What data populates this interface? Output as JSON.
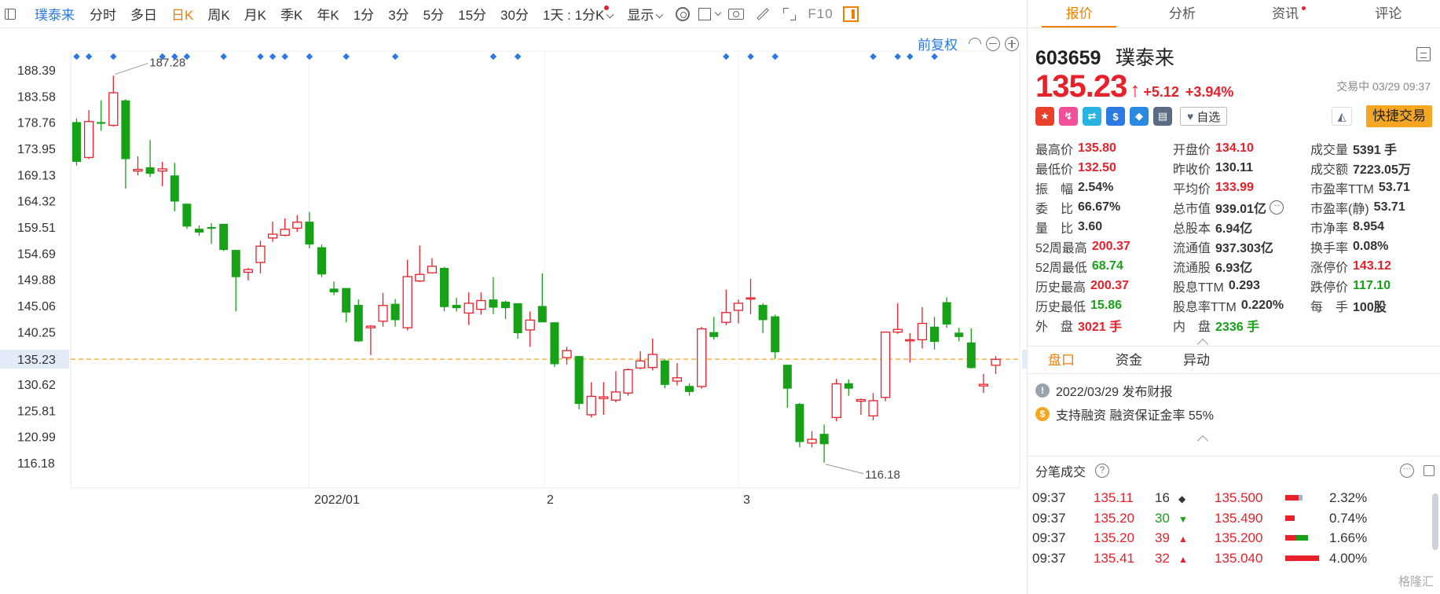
{
  "toolbar": {
    "stock_name": "璞泰来",
    "periods": [
      "分时",
      "多日",
      "日K",
      "周K",
      "月K",
      "季K",
      "年K",
      "1分",
      "3分",
      "5分",
      "15分",
      "30分"
    ],
    "active_period": "日K",
    "interval_dropdown": "1天 : 1分K",
    "display_dropdown": "显示",
    "f10_label": "F10",
    "icons": [
      "sidebar-toggle-icon",
      "gear-icon",
      "square-icon",
      "camera-icon",
      "pen-icon",
      "fullscreen-icon",
      "panel-icon"
    ]
  },
  "chart": {
    "adjust_label": "前复权",
    "y_ticks": [
      "188.39",
      "183.58",
      "178.76",
      "173.95",
      "169.13",
      "164.32",
      "159.51",
      "154.69",
      "149.88",
      "145.06",
      "140.25",
      "135.23",
      "130.62",
      "125.81",
      "120.99",
      "116.18"
    ],
    "current_price_label": "135.23",
    "high_marker": "187.28",
    "low_marker": "116.18",
    "x_labels": [
      "2022/01",
      "2",
      "3"
    ],
    "colors": {
      "up": "#e8202a",
      "down": "#16a116",
      "price_line": "#f5a623",
      "marker": "#2a7ae2"
    }
  },
  "chart_data": {
    "type": "candlestick",
    "title": "",
    "ylim": [
      113,
      191
    ],
    "x_labels": [
      "2022/01",
      "2",
      "3"
    ],
    "y_ticks": [
      188.39,
      183.58,
      178.76,
      173.95,
      169.13,
      164.32,
      159.51,
      154.69,
      149.88,
      145.06,
      140.25,
      135.23,
      130.62,
      125.81,
      120.99,
      116.18
    ],
    "current_price": 135.23,
    "high_mark": 187.28,
    "low_mark": 116.18,
    "candles": [
      {
        "o": 178.8,
        "c": 171.5,
        "h": 179.5,
        "l": 170.8
      },
      {
        "o": 172.3,
        "c": 178.9,
        "h": 181.0,
        "l": 172.0
      },
      {
        "o": 178.8,
        "c": 178.5,
        "h": 182.8,
        "l": 177.2
      },
      {
        "o": 178.2,
        "c": 184.2,
        "h": 187.3,
        "l": 178.0
      },
      {
        "o": 182.8,
        "c": 172.0,
        "h": 183.0,
        "l": 166.6
      },
      {
        "o": 169.8,
        "c": 170.1,
        "h": 172.5,
        "l": 169.0
      },
      {
        "o": 170.5,
        "c": 169.3,
        "h": 175.5,
        "l": 168.7
      },
      {
        "o": 169.8,
        "c": 170.2,
        "h": 171.5,
        "l": 167.0
      },
      {
        "o": 169.0,
        "c": 164.2,
        "h": 171.3,
        "l": 162.4
      },
      {
        "o": 163.8,
        "c": 159.6,
        "h": 163.8,
        "l": 159.2
      },
      {
        "o": 159.2,
        "c": 158.5,
        "h": 159.8,
        "l": 157.9
      },
      {
        "o": 159.5,
        "c": 159.2,
        "h": 160.2,
        "l": 156.4
      },
      {
        "o": 160.1,
        "c": 155.3,
        "h": 160.1,
        "l": 155.1
      },
      {
        "o": 155.3,
        "c": 150.3,
        "h": 155.3,
        "l": 144.0
      },
      {
        "o": 151.2,
        "c": 151.7,
        "h": 152.0,
        "l": 149.7
      },
      {
        "o": 153.0,
        "c": 156.0,
        "h": 157.0,
        "l": 151.0
      },
      {
        "o": 157.5,
        "c": 158.2,
        "h": 160.5,
        "l": 156.8
      },
      {
        "o": 158.0,
        "c": 159.1,
        "h": 161.1,
        "l": 157.8
      },
      {
        "o": 159.3,
        "c": 160.4,
        "h": 161.7,
        "l": 158.6
      },
      {
        "o": 160.5,
        "c": 156.3,
        "h": 162.3,
        "l": 155.6
      },
      {
        "o": 155.8,
        "c": 150.8,
        "h": 156.3,
        "l": 150.3
      },
      {
        "o": 148.2,
        "c": 147.5,
        "h": 149.5,
        "l": 147.0
      },
      {
        "o": 148.3,
        "c": 143.8,
        "h": 148.3,
        "l": 142.0
      },
      {
        "o": 145.2,
        "c": 138.5,
        "h": 146.2,
        "l": 138.4
      },
      {
        "o": 141.0,
        "c": 141.3,
        "h": 141.5,
        "l": 136.0
      },
      {
        "o": 142.2,
        "c": 145.1,
        "h": 147.4,
        "l": 141.2
      },
      {
        "o": 145.4,
        "c": 142.4,
        "h": 146.3,
        "l": 141.2
      },
      {
        "o": 141.0,
        "c": 150.4,
        "h": 153.5,
        "l": 140.5
      },
      {
        "o": 149.6,
        "c": 150.8,
        "h": 156.1,
        "l": 149.4
      },
      {
        "o": 151.1,
        "c": 152.3,
        "h": 153.8,
        "l": 151.0
      },
      {
        "o": 152.0,
        "c": 144.8,
        "h": 152.2,
        "l": 144.0
      },
      {
        "o": 145.2,
        "c": 144.6,
        "h": 146.5,
        "l": 144.0
      },
      {
        "o": 143.7,
        "c": 145.5,
        "h": 147.5,
        "l": 141.5
      },
      {
        "o": 144.4,
        "c": 146.0,
        "h": 147.5,
        "l": 143.4
      },
      {
        "o": 146.2,
        "c": 144.7,
        "h": 150.3,
        "l": 143.5
      },
      {
        "o": 145.8,
        "c": 144.6,
        "h": 146.0,
        "l": 142.6
      },
      {
        "o": 145.5,
        "c": 140.0,
        "h": 145.5,
        "l": 139.0
      },
      {
        "o": 140.6,
        "c": 142.4,
        "h": 144.0,
        "l": 137.5
      },
      {
        "o": 145.0,
        "c": 142.0,
        "h": 151.0,
        "l": 142.0
      },
      {
        "o": 142.0,
        "c": 134.3,
        "h": 142.0,
        "l": 133.8
      },
      {
        "o": 135.5,
        "c": 136.8,
        "h": 137.5,
        "l": 134.2
      },
      {
        "o": 135.8,
        "c": 127.0,
        "h": 135.8,
        "l": 126.0
      },
      {
        "o": 125.0,
        "c": 128.4,
        "h": 131.0,
        "l": 124.5
      },
      {
        "o": 128.0,
        "c": 128.3,
        "h": 131.0,
        "l": 125.0
      },
      {
        "o": 127.7,
        "c": 129.2,
        "h": 133.0,
        "l": 127.3
      },
      {
        "o": 129.0,
        "c": 133.3,
        "h": 133.5,
        "l": 128.5
      },
      {
        "o": 133.6,
        "c": 134.9,
        "h": 136.7,
        "l": 133.4
      },
      {
        "o": 133.7,
        "c": 136.1,
        "h": 139.0,
        "l": 133.2
      },
      {
        "o": 135.0,
        "c": 130.5,
        "h": 135.2,
        "l": 129.9
      },
      {
        "o": 131.2,
        "c": 131.8,
        "h": 134.5,
        "l": 130.4
      },
      {
        "o": 130.3,
        "c": 129.2,
        "h": 130.8,
        "l": 128.5
      },
      {
        "o": 130.2,
        "c": 140.8,
        "h": 141.2,
        "l": 129.8
      },
      {
        "o": 140.2,
        "c": 139.3,
        "h": 143.0,
        "l": 138.8
      },
      {
        "o": 142.0,
        "c": 143.8,
        "h": 148.0,
        "l": 141.5
      },
      {
        "o": 144.2,
        "c": 145.5,
        "h": 146.2,
        "l": 141.8
      },
      {
        "o": 146.4,
        "c": 146.5,
        "h": 150.0,
        "l": 143.5
      },
      {
        "o": 145.2,
        "c": 142.4,
        "h": 145.5,
        "l": 140.0
      },
      {
        "o": 143.1,
        "c": 136.5,
        "h": 143.4,
        "l": 135.3
      },
      {
        "o": 134.2,
        "c": 129.8,
        "h": 134.2,
        "l": 126.3
      },
      {
        "o": 127.0,
        "c": 120.0,
        "h": 127.2,
        "l": 119.0
      },
      {
        "o": 119.8,
        "c": 120.5,
        "h": 122.0,
        "l": 119.0
      },
      {
        "o": 121.5,
        "c": 119.6,
        "h": 123.2,
        "l": 116.2
      },
      {
        "o": 124.5,
        "c": 130.7,
        "h": 131.6,
        "l": 123.8
      },
      {
        "o": 130.8,
        "c": 129.8,
        "h": 131.5,
        "l": 128.5
      },
      {
        "o": 127.5,
        "c": 127.8,
        "h": 128.0,
        "l": 125.0
      },
      {
        "o": 124.8,
        "c": 127.6,
        "h": 129.0,
        "l": 124.0
      },
      {
        "o": 128.2,
        "c": 140.2,
        "h": 140.3,
        "l": 127.5
      },
      {
        "o": 140.2,
        "c": 140.7,
        "h": 145.5,
        "l": 139.9
      },
      {
        "o": 138.8,
        "c": 138.8,
        "h": 140.0,
        "l": 134.6
      },
      {
        "o": 138.8,
        "c": 141.8,
        "h": 144.8,
        "l": 137.2
      },
      {
        "o": 141.2,
        "c": 138.4,
        "h": 143.0,
        "l": 137.0
      },
      {
        "o": 145.7,
        "c": 141.6,
        "h": 146.6,
        "l": 141.0
      },
      {
        "o": 140.1,
        "c": 139.3,
        "h": 141.0,
        "l": 138.5
      },
      {
        "o": 138.3,
        "c": 133.6,
        "h": 140.9,
        "l": 133.5
      },
      {
        "o": 130.3,
        "c": 130.6,
        "h": 132.5,
        "l": 129.0
      },
      {
        "o": 134.1,
        "c": 135.2,
        "h": 135.8,
        "l": 132.5
      }
    ],
    "top_markers_candle_index": [
      0,
      1,
      3,
      7,
      8,
      9,
      12,
      15,
      16,
      17,
      19,
      22,
      26,
      34,
      36,
      53,
      55,
      57,
      65,
      67,
      68,
      70
    ]
  },
  "panel": {
    "tabs": [
      "报价",
      "分析",
      "资讯",
      "评论"
    ],
    "active_tab": "报价",
    "code": "603659",
    "name": "璞泰来",
    "price": "135.23",
    "change": "+5.12",
    "change_pct": "+3.94%",
    "trade_status": "交易中 03/29 09:37",
    "badges": [
      {
        "name": "china-flag-icon",
        "glyph": "★",
        "color": "#e8402a"
      },
      {
        "name": "margin-icon",
        "glyph": "↯",
        "color": "#f0509a"
      },
      {
        "name": "shuffle-icon",
        "glyph": "⇄",
        "color": "#2ab3e0"
      },
      {
        "name": "dollar-icon",
        "glyph": "$",
        "color": "#2a7ae2"
      },
      {
        "name": "tag-icon",
        "glyph": "◆",
        "color": "#2a8ae2"
      },
      {
        "name": "doc-icon",
        "glyph": "▤",
        "color": "#5a6b82"
      }
    ],
    "favorite_label": "自选",
    "quick_trade_label": "快捷交易",
    "stats": [
      {
        "label": "最高价",
        "value": "135.80",
        "color": "red"
      },
      {
        "label": "开盘价",
        "value": "134.10",
        "color": "red"
      },
      {
        "label": "成交量",
        "value": "5391 手",
        "color": ""
      },
      {
        "label": "最低价",
        "value": "132.50",
        "color": "red"
      },
      {
        "label": "昨收价",
        "value": "130.11",
        "color": ""
      },
      {
        "label": "成交额",
        "value": "7223.05万",
        "color": ""
      },
      {
        "label": "振　幅",
        "value": "2.54%",
        "color": ""
      },
      {
        "label": "平均价",
        "value": "133.99",
        "color": "red"
      },
      {
        "label": "市盈率TTM",
        "value": "53.71",
        "color": ""
      },
      {
        "label": "委　比",
        "value": "66.67%",
        "color": ""
      },
      {
        "label": "总市值",
        "value": "939.01亿",
        "color": ""
      },
      {
        "label": "市盈率(静)",
        "value": "53.71",
        "color": ""
      },
      {
        "label": "量　比",
        "value": "3.60",
        "color": ""
      },
      {
        "label": "总股本",
        "value": "6.94亿",
        "color": ""
      },
      {
        "label": "市净率",
        "value": "8.954",
        "color": ""
      },
      {
        "label": "52周最高",
        "value": "200.37",
        "color": "red"
      },
      {
        "label": "流通值",
        "value": "937.303亿",
        "color": ""
      },
      {
        "label": "换手率",
        "value": "0.08%",
        "color": ""
      },
      {
        "label": "52周最低",
        "value": "68.74",
        "color": "green"
      },
      {
        "label": "流通股",
        "value": "6.93亿",
        "color": ""
      },
      {
        "label": "涨停价",
        "value": "143.12",
        "color": "red"
      },
      {
        "label": "历史最高",
        "value": "200.37",
        "color": "red"
      },
      {
        "label": "股息TTM",
        "value": "0.293",
        "color": ""
      },
      {
        "label": "跌停价",
        "value": "117.10",
        "color": "green"
      },
      {
        "label": "历史最低",
        "value": "15.86",
        "color": "green"
      },
      {
        "label": "股息率TTM",
        "value": "0.220%",
        "color": ""
      },
      {
        "label": "每　手",
        "value": "100股",
        "color": ""
      },
      {
        "label": "外　盘",
        "value": "3021 手",
        "color": "red"
      },
      {
        "label": "内　盘",
        "value": "2336 手",
        "color": "green"
      }
    ],
    "subtabs": [
      "盘口",
      "资金",
      "异动"
    ],
    "notices": [
      {
        "icon": "info-icon",
        "glyph": "!",
        "color": "#9aa3ad",
        "text": "2022/03/29  发布财报"
      },
      {
        "icon": "money-icon",
        "glyph": "$",
        "color": "#f5a623",
        "text": "支持融资  融资保证金率 55%"
      }
    ],
    "ticks_title": "分笔成交",
    "ticks": [
      {
        "time": "09:37",
        "price": "135.11",
        "vol": "16",
        "dir": "◆",
        "dir_color": "#333",
        "vol_color": "",
        "level": "135.500",
        "bar": [
          {
            "w": 0.35,
            "c": "#e8202a"
          },
          {
            "w": 0.1,
            "c": "#a0b4cc"
          }
        ],
        "pct": "2.32%"
      },
      {
        "time": "09:37",
        "price": "135.20",
        "vol": "30",
        "dir": "▼",
        "dir_color": "#16a116",
        "vol_color": "green",
        "level": "135.490",
        "bar": [
          {
            "w": 0.25,
            "c": "#e8202a"
          }
        ],
        "pct": "0.74%"
      },
      {
        "time": "09:37",
        "price": "135.20",
        "vol": "39",
        "dir": "▲",
        "dir_color": "#e8202a",
        "vol_color": "red",
        "level": "135.200",
        "bar": [
          {
            "w": 0.3,
            "c": "#e8202a"
          },
          {
            "w": 0.3,
            "c": "#16a116"
          }
        ],
        "pct": "1.66%"
      },
      {
        "time": "09:37",
        "price": "135.41",
        "vol": "32",
        "dir": "▲",
        "dir_color": "#e8202a",
        "vol_color": "red",
        "level": "135.040",
        "bar": [
          {
            "w": 0.9,
            "c": "#e8202a"
          }
        ],
        "pct": "4.00%"
      }
    ],
    "watermark": "格隆汇"
  }
}
